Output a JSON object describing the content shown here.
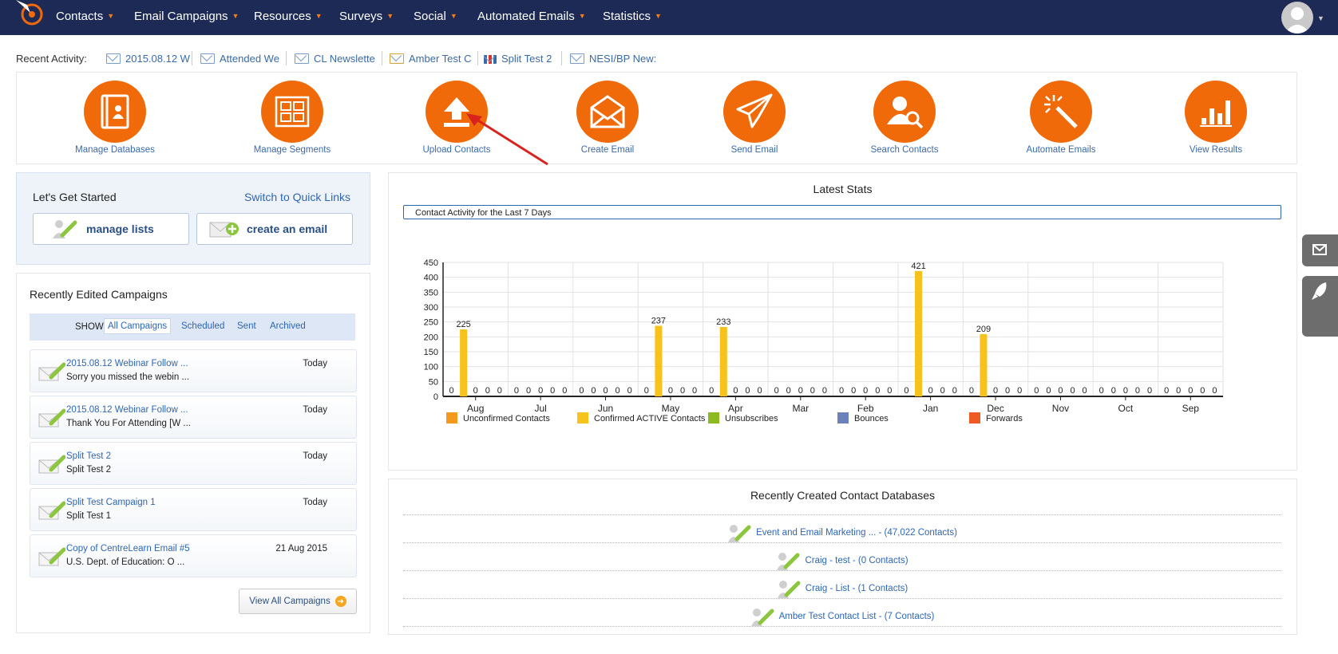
{
  "nav": {
    "items": [
      "Contacts",
      "Email Campaigns",
      "Resources",
      "Surveys",
      "Social",
      "Automated Emails",
      "Statistics"
    ]
  },
  "recent_activity": {
    "label": "Recent Activity:",
    "items": [
      "2015.08.12 W",
      "Attended We",
      "CL Newslette",
      "Amber Test C",
      "Split Test 2",
      "NESI/BP New:"
    ]
  },
  "quick_actions": [
    "Manage Databases",
    "Manage Segments",
    "Upload Contacts",
    "Create Email",
    "Send Email",
    "Search Contacts",
    "Automate Emails",
    "View Results"
  ],
  "getting_started": {
    "title": "Let's Get Started",
    "switch_link": "Switch to Quick Links",
    "manage_lists": "manage lists",
    "create_email": "create an email"
  },
  "campaigns": {
    "title": "Recently Edited Campaigns",
    "show_label": "SHOW:",
    "tabs": [
      "All Campaigns",
      "Scheduled",
      "Sent",
      "Archived"
    ],
    "items": [
      {
        "title": "2015.08.12 Webinar Follow ...",
        "subtitle": "Sorry you missed the webin ...",
        "date": "Today"
      },
      {
        "title": "2015.08.12 Webinar Follow ...",
        "subtitle": "Thank You For Attending [W ...",
        "date": "Today"
      },
      {
        "title": "Split Test 2",
        "subtitle": "Split Test 2",
        "date": "Today"
      },
      {
        "title": "Split Test Campaign 1",
        "subtitle": "Split Test 1",
        "date": "Today"
      },
      {
        "title": "Copy of CentreLearn Email #5",
        "subtitle": "U.S. Dept. of Education: O ...",
        "date": "21 Aug 2015"
      }
    ],
    "view_all": "View All Campaigns"
  },
  "stats": {
    "title": "Latest Stats",
    "selector": "Contact Activity for the Last 7 Days"
  },
  "chart_data": {
    "type": "bar",
    "categories": [
      "Aug",
      "Jul",
      "Jun",
      "May",
      "Apr",
      "Mar",
      "Feb",
      "Jan",
      "Dec",
      "Nov",
      "Oct",
      "Sep"
    ],
    "series": [
      {
        "name": "Unconfirmed Contacts",
        "color": "#f39a1e",
        "values": [
          0,
          0,
          0,
          0,
          0,
          0,
          0,
          0,
          0,
          0,
          0,
          0
        ]
      },
      {
        "name": "Confirmed ACTIVE Contacts",
        "color": "#f7c21c",
        "values": [
          225,
          0,
          0,
          237,
          233,
          0,
          0,
          421,
          209,
          0,
          0,
          0
        ]
      },
      {
        "name": "Unsubscribes",
        "color": "#8dba1e",
        "values": [
          0,
          0,
          0,
          0,
          0,
          0,
          0,
          0,
          0,
          0,
          0,
          0
        ]
      },
      {
        "name": "Bounces",
        "color": "#6b82b8",
        "values": [
          0,
          0,
          0,
          0,
          0,
          0,
          0,
          0,
          0,
          0,
          0,
          0
        ]
      },
      {
        "name": "Forwards",
        "color": "#ee5a24",
        "values": [
          0,
          0,
          0,
          0,
          0,
          0,
          0,
          0,
          0,
          0,
          0,
          0
        ]
      }
    ],
    "ylim": [
      0,
      450
    ],
    "yticks": [
      0,
      50,
      100,
      150,
      200,
      250,
      300,
      350,
      400,
      450
    ],
    "grid": true,
    "legend": "bottom"
  },
  "databases": {
    "title": "Recently Created Contact Databases",
    "items": [
      "Event and Email Marketing ... - (47,022 Contacts)",
      "Craig - test - (0 Contacts)",
      "Craig - List - (1 Contacts)",
      "Amber Test Contact List - (7 Contacts)"
    ]
  },
  "colors": {
    "navbar": "#1c2a55",
    "accent_orange": "#f06a0a",
    "link_blue": "#2e66b3"
  }
}
